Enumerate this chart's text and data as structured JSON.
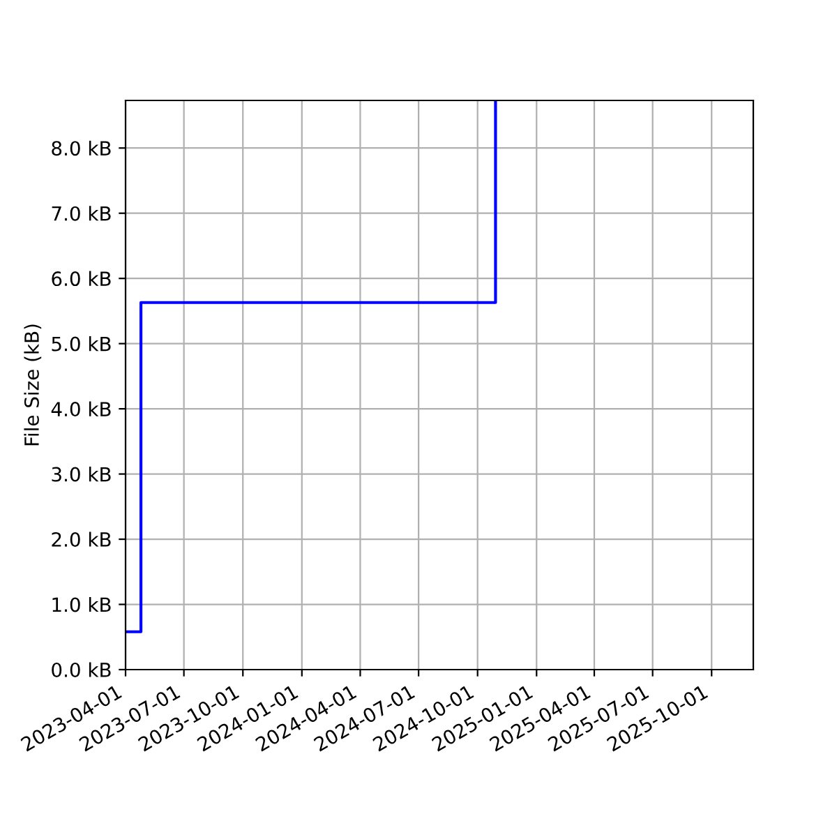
{
  "chart_data": {
    "type": "step",
    "ylabel": "File Size (kB)",
    "x": [
      "2023-04-01",
      "2023-04-25",
      "2024-10-29"
    ],
    "series": [
      {
        "color": "#0000ff",
        "values": [
          0.58,
          5.63,
          8.73
        ]
      }
    ],
    "xlim": [
      "2023-04-01",
      "2025-12-05"
    ],
    "xticks": [
      "2023-04-01",
      "2023-07-01",
      "2023-10-01",
      "2024-01-01",
      "2024-04-01",
      "2024-07-01",
      "2024-10-01",
      "2025-01-01",
      "2025-04-01",
      "2025-07-01",
      "2025-10-01"
    ],
    "ylim": [
      0,
      8.73
    ],
    "yticks": [
      {
        "value": 0,
        "label": "0.0 kB"
      },
      {
        "value": 1,
        "label": "1.0 kB"
      },
      {
        "value": 2,
        "label": "2.0 kB"
      },
      {
        "value": 3,
        "label": "3.0 kB"
      },
      {
        "value": 4,
        "label": "4.0 kB"
      },
      {
        "value": 5,
        "label": "5.0 kB"
      },
      {
        "value": 6,
        "label": "6.0 kB"
      },
      {
        "value": 7,
        "label": "7.0 kB"
      },
      {
        "value": 8,
        "label": "8.0 kB"
      }
    ],
    "grid": true,
    "line_style": "solid",
    "marker": "none"
  }
}
